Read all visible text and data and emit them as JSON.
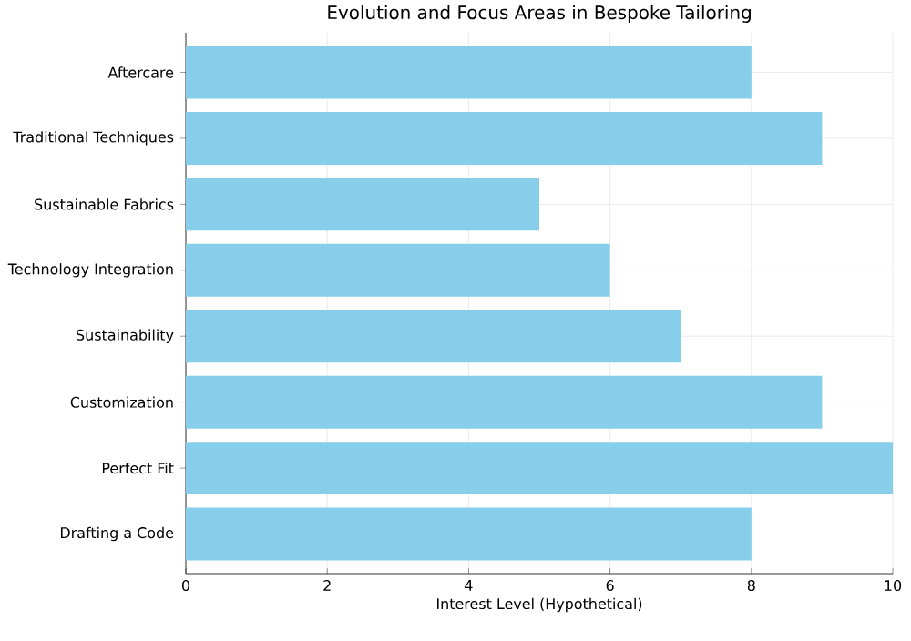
{
  "chart_data": {
    "type": "bar",
    "orientation": "horizontal",
    "title": "Evolution and Focus Areas in Bespoke Tailoring",
    "xlabel": "Interest Level (Hypothetical)",
    "categories": [
      "Aftercare",
      "Traditional Techniques",
      "Sustainable Fabrics",
      "Technology Integration",
      "Sustainability",
      "Customization",
      "Perfect Fit",
      "Drafting a Code"
    ],
    "values": [
      8,
      9,
      5,
      6,
      7,
      9,
      10,
      8
    ],
    "color": "#87ceeb",
    "xlim": [
      0,
      10
    ],
    "xticks": [
      0,
      2,
      4,
      6,
      8,
      10
    ],
    "grid": true
  }
}
